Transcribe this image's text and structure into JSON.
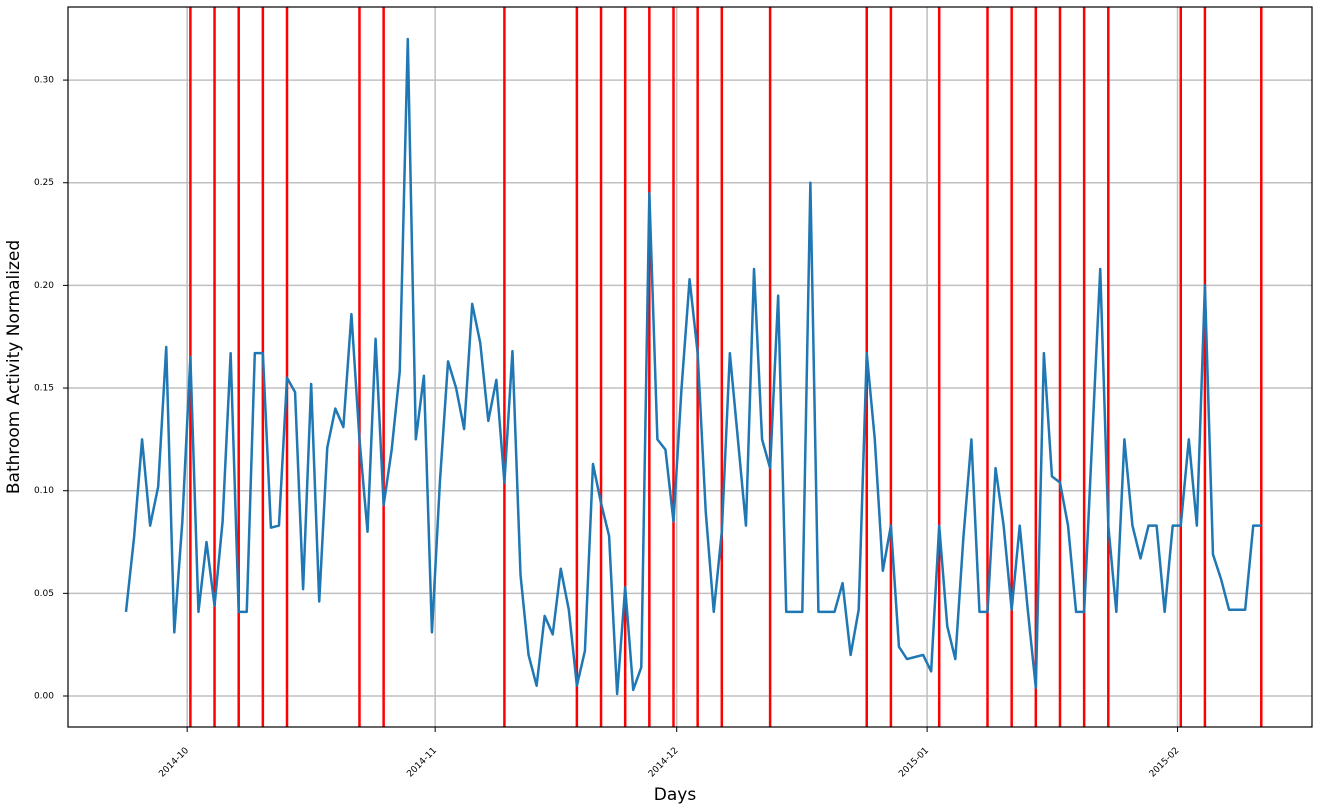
{
  "chart_data": {
    "type": "line",
    "x_label": "Days",
    "y_label": "Bathroom Activity Normalized",
    "x": [
      0,
      1,
      2,
      3,
      4,
      5,
      6,
      7,
      8,
      9,
      10,
      11,
      12,
      13,
      14,
      15,
      16,
      17,
      18,
      19,
      20,
      21,
      22,
      23,
      24,
      25,
      26,
      27,
      28,
      29,
      30,
      31,
      32,
      33,
      34,
      35,
      36,
      37,
      38,
      39,
      40,
      41,
      42,
      43,
      44,
      45,
      46,
      47,
      48,
      49,
      50,
      51,
      52,
      53,
      54,
      55,
      56,
      57,
      58,
      59,
      60,
      61,
      62,
      63,
      64,
      65,
      66,
      67,
      68,
      69,
      70,
      71,
      72,
      73,
      74,
      75,
      76,
      77,
      78,
      79,
      80,
      81,
      82,
      83,
      84,
      85,
      86,
      87,
      88,
      89,
      90,
      91,
      92,
      93,
      94,
      95,
      96,
      97,
      98,
      99,
      100,
      101,
      102,
      103,
      104,
      105,
      106,
      107,
      108,
      109,
      110,
      111,
      112,
      113,
      114,
      115,
      116,
      117,
      118,
      119,
      120,
      121,
      122,
      123,
      124,
      125,
      126,
      127,
      128,
      129,
      130,
      131,
      132,
      133,
      134,
      135,
      136,
      137,
      138,
      139,
      140,
      141
    ],
    "series": [
      {
        "color": "#1f77b4",
        "values": [
          0.041,
          0.077,
          0.125,
          0.083,
          0.102,
          0.17,
          0.031,
          0.085,
          0.165,
          0.041,
          0.075,
          0.044,
          0.085,
          0.167,
          0.041,
          0.041,
          0.167,
          0.167,
          0.082,
          0.083,
          0.155,
          0.148,
          0.052,
          0.152,
          0.046,
          0.121,
          0.14,
          0.131,
          0.186,
          0.125,
          0.08,
          0.174,
          0.093,
          0.12,
          0.158,
          0.32,
          0.125,
          0.156,
          0.031,
          0.105,
          0.163,
          0.15,
          0.13,
          0.191,
          0.172,
          0.134,
          0.154,
          0.104,
          0.168,
          0.059,
          0.02,
          0.005,
          0.039,
          0.03,
          0.062,
          0.042,
          0.005,
          0.022,
          0.113,
          0.094,
          0.078,
          0.001,
          0.053,
          0.003,
          0.014,
          0.245,
          0.125,
          0.12,
          0.085,
          0.15,
          0.203,
          0.167,
          0.09,
          0.041,
          0.08,
          0.167,
          0.125,
          0.083,
          0.208,
          0.125,
          0.111,
          0.195,
          0.041,
          0.041,
          0.041,
          0.25,
          0.041,
          0.041,
          0.041,
          0.055,
          0.02,
          0.042,
          0.167,
          0.125,
          0.061,
          0.083,
          0.024,
          0.018,
          0.019,
          0.02,
          0.012,
          0.083,
          0.034,
          0.018,
          0.077,
          0.125,
          0.041,
          0.041,
          0.111,
          0.083,
          0.042,
          0.083,
          0.042,
          0.004,
          0.167,
          0.107,
          0.104,
          0.083,
          0.041,
          0.041,
          0.125,
          0.208,
          0.083,
          0.041,
          0.125,
          0.083,
          0.067,
          0.083,
          0.083,
          0.041,
          0.083,
          0.083,
          0.125,
          0.083,
          0.2,
          0.069,
          0.057,
          0.042,
          0.042,
          0.042,
          0.083,
          0.083
        ]
      }
    ],
    "vlines": {
      "color": "#ff0000",
      "x": [
        8,
        11,
        14,
        17,
        20,
        29,
        32,
        47,
        56,
        59,
        62,
        65,
        68,
        71,
        74,
        80,
        92,
        95,
        101,
        107,
        110,
        113,
        116,
        119,
        122,
        131,
        134,
        141
      ]
    },
    "xlim": [
      -7.2,
      147.3
    ],
    "xticks": [
      {
        "value": 7.6,
        "label": "2014-10"
      },
      {
        "value": 38.4,
        "label": "2014-11"
      },
      {
        "value": 68.4,
        "label": "2014-12"
      },
      {
        "value": 99.5,
        "label": "2015-01"
      },
      {
        "value": 130.6,
        "label": "2015-02"
      }
    ],
    "ylim": [
      -0.0151,
      0.3356
    ],
    "yticks": [
      {
        "value": 0,
        "label": "0.00"
      },
      0.05,
      {
        "value": 0.1,
        "label": "0.10"
      },
      0.15,
      {
        "value": 0.2,
        "label": "0.20"
      },
      0.25,
      {
        "value": 0.3,
        "label": "0.30"
      }
    ],
    "grid": true
  }
}
